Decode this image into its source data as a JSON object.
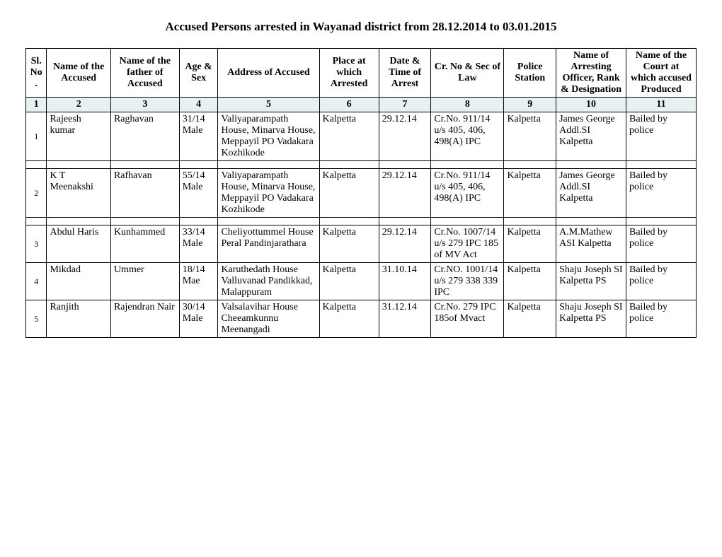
{
  "title": "Accused Persons arrested in Wayanad  district from 28.12.2014 to 03.01.2015",
  "headers": {
    "h1": "Sl. No.",
    "h2": "Name of the Accused",
    "h3": "Name of the father of Accused",
    "h4": "Age & Sex",
    "h5": "Address of Accused",
    "h6": "Place at which Arrested",
    "h7": "Date & Time of Arrest",
    "h8": "Cr. No & Sec of Law",
    "h9": "Police Station",
    "h10": "Name of Arresting Officer, Rank & Designation",
    "h11": "Name of the Court at which accused Produced"
  },
  "colnums": {
    "c1": "1",
    "c2": "2",
    "c3": "3",
    "c4": "4",
    "c5": "5",
    "c6": "6",
    "c7": "7",
    "c8": "8",
    "c9": "9",
    "c10": "10",
    "c11": "11"
  },
  "rows": [
    {
      "sl": "1",
      "name": "Rajeesh kumar",
      "father": "Raghavan",
      "age": "31/14 Male",
      "addr": "Valiyaparampath House, Minarva House, Meppayil PO Vadakara Kozhikode",
      "place": "Kalpetta",
      "date": "29.12.14",
      "cr": "Cr.No. 911/14 u/s 405, 406, 498(A) IPC",
      "ps": "Kalpetta",
      "off": "James George Addl.SI Kalpetta",
      "court": "Bailed by police"
    },
    {
      "sl": "2",
      "name": "K T Meenakshi",
      "father": "Rafhavan",
      "age": "55/14 Male",
      "addr": "Valiyaparampath House, Minarva House, Meppayil PO Vadakara Kozhikode",
      "place": "Kalpetta",
      "date": "29.12.14",
      "cr": "Cr.No. 911/14 u/s 405, 406, 498(A) IPC",
      "ps": "Kalpetta",
      "off": "James George Addl.SI Kalpetta",
      "court": "Bailed by police"
    },
    {
      "sl": "3",
      "name": "Abdul Haris",
      "father": "Kunhammed",
      "age": "33/14 Male",
      "addr": "Cheliyottummel House Peral Pandinjarathara",
      "place": "Kalpetta",
      "date": "29.12.14",
      "cr": "Cr.No. 1007/14 u/s 279 IPC 185 of MV Act",
      "ps": "Kalpetta",
      "off": "A.M.Mathew ASI Kalpetta",
      "court": "Bailed by police"
    },
    {
      "sl": "4",
      "name": "Mikdad",
      "father": "Ummer",
      "age": "18/14 Mae",
      "addr": "Karuthedath House Valluvanad Pandikkad, Malappuram",
      "place": "Kalpetta",
      "date": "31.10.14",
      "cr": "Cr.NO. 1001/14 u/s 279 338 339 IPC",
      "ps": "Kalpetta",
      "off": "Shaju Joseph SI Kalpetta PS",
      "court": "Bailed by police"
    },
    {
      "sl": "5",
      "name": "Ranjith",
      "father": "Rajendran Nair",
      "age": "30/14 Male",
      "addr": "Valsalavihar House Cheeamkunnu Meenangadi",
      "place": "Kalpetta",
      "date": "31.12.14",
      "cr": "Cr.No. 279 IPC 185of Mvact",
      "ps": "Kalpetta",
      "off": "Shaju Joseph SI Kalpetta PS",
      "court": "Bailed by police"
    }
  ]
}
